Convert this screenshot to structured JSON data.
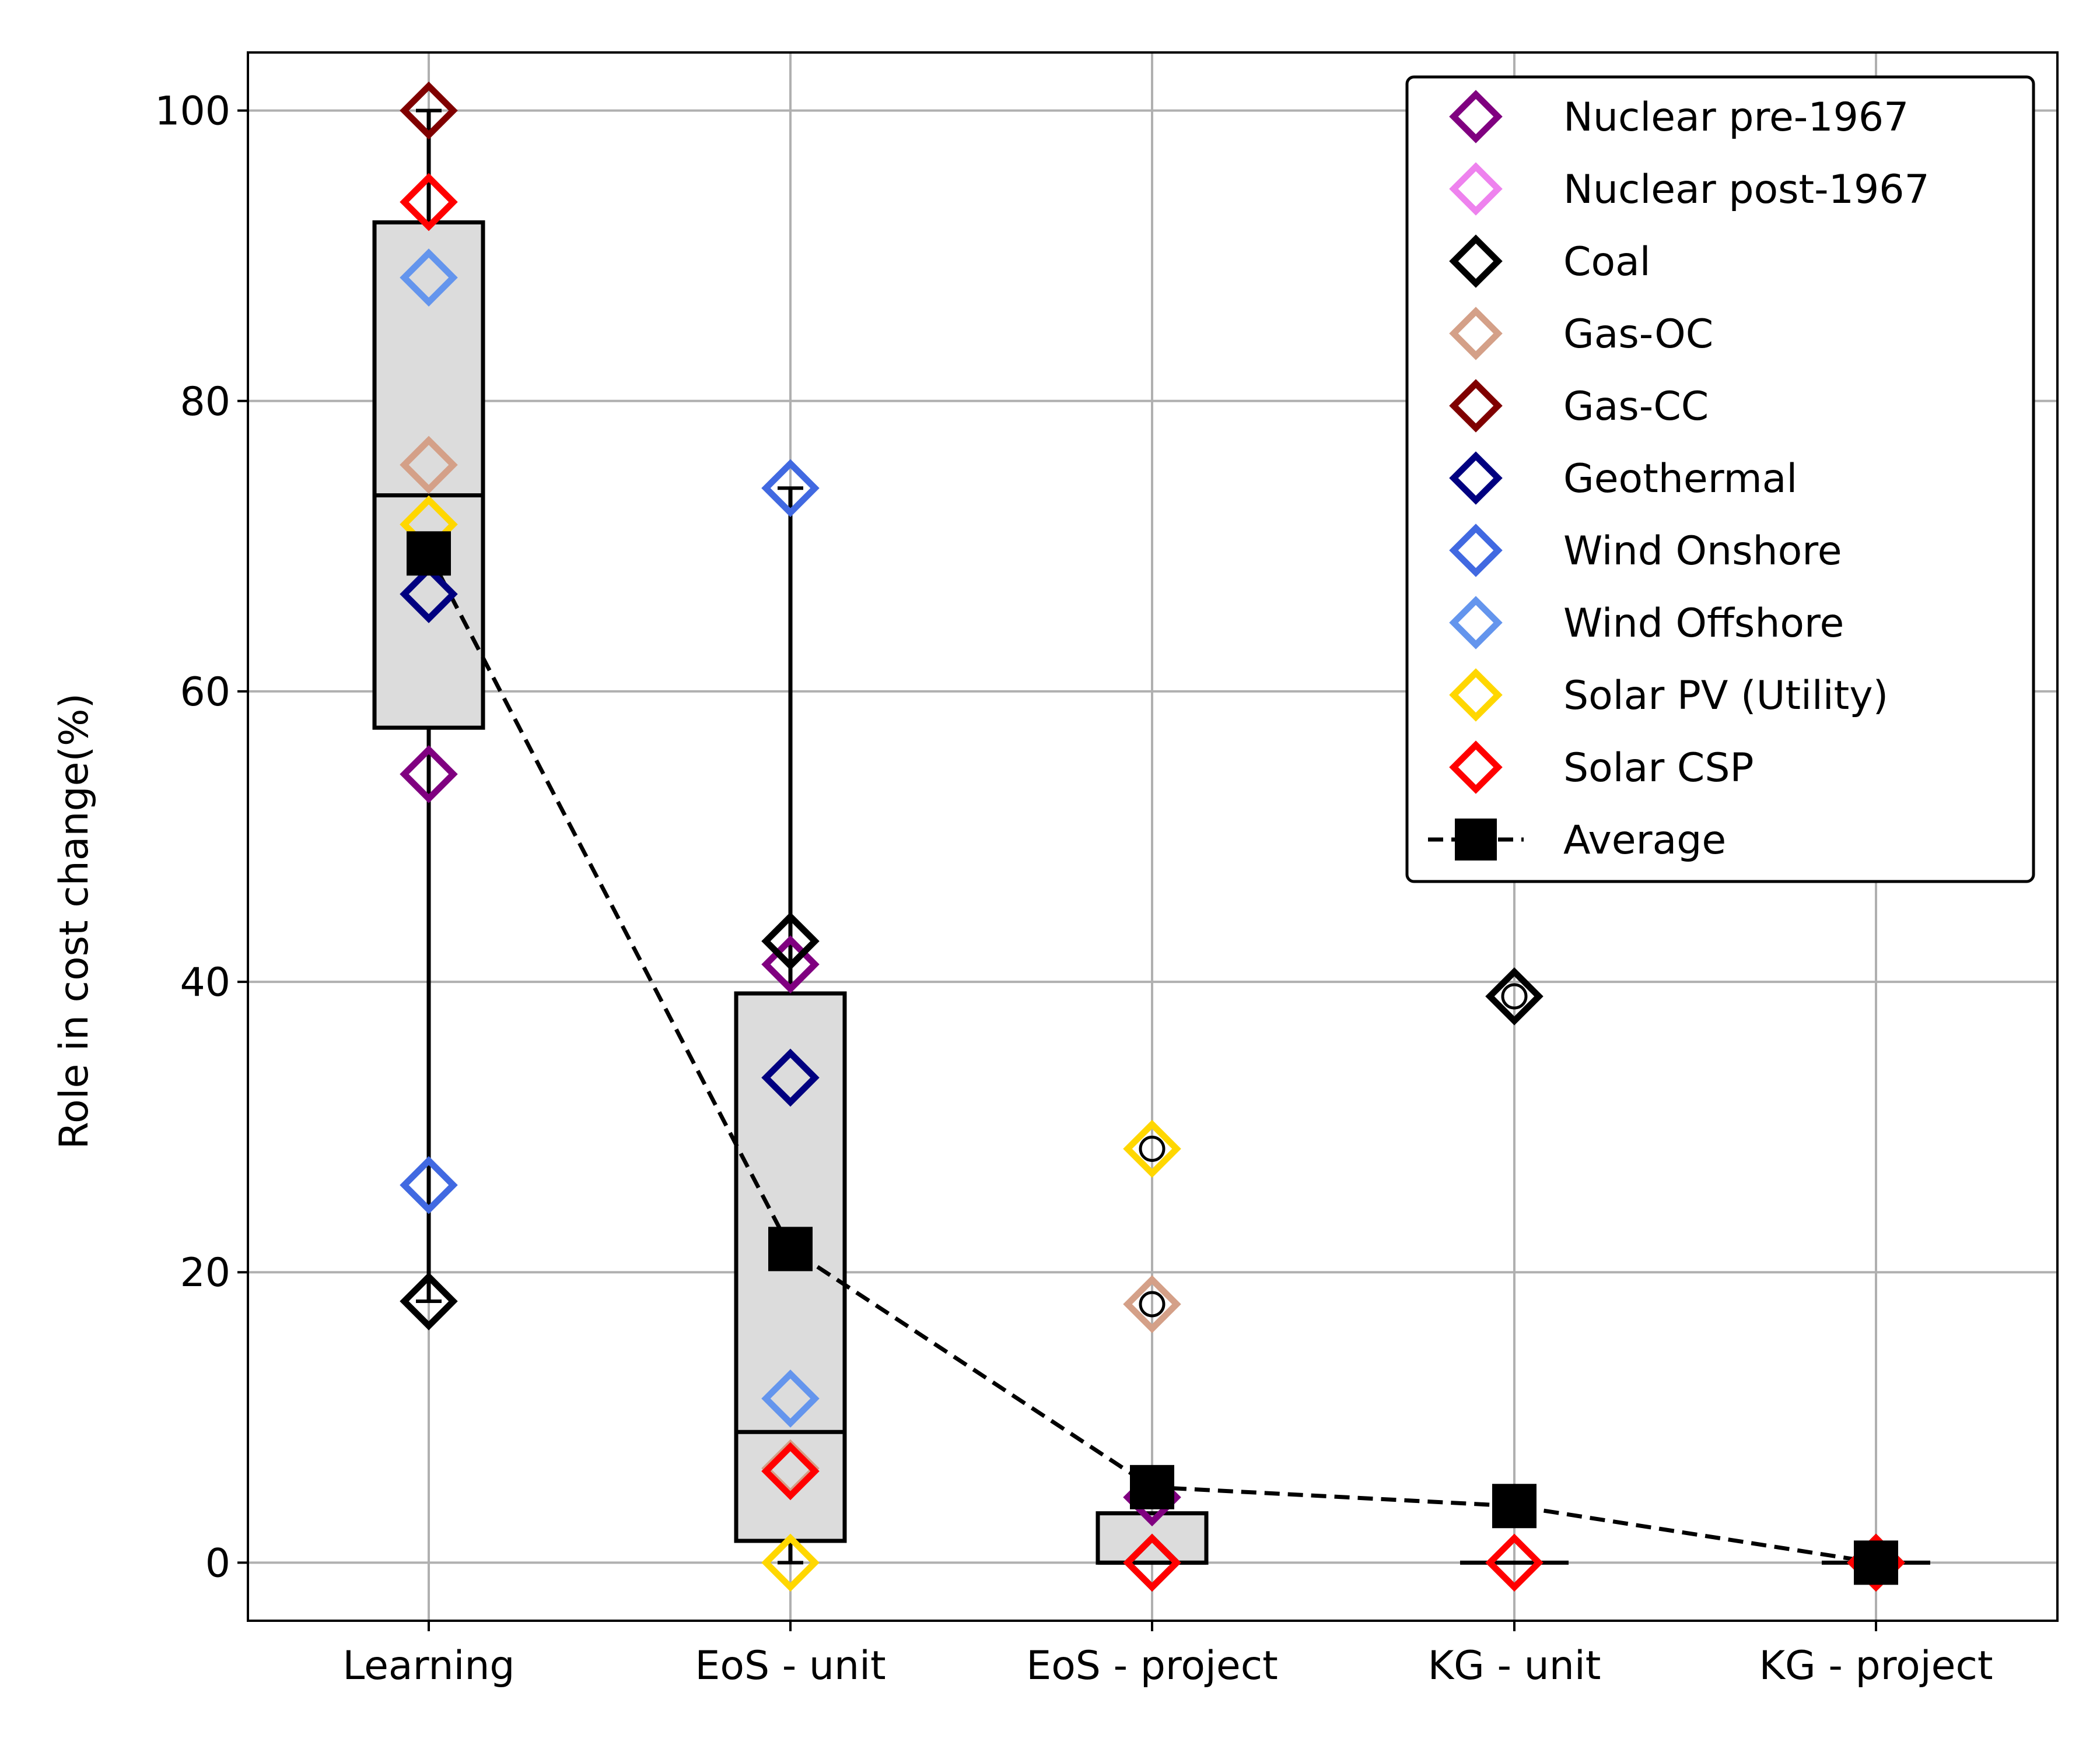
{
  "chart_data": {
    "type": "box",
    "ylabel": "Role in cost change(%)",
    "xlabel": "",
    "title": "",
    "categories": [
      "Learning",
      "EoS - unit",
      "EoS - project",
      "KG - unit",
      "KG - project"
    ],
    "y_ticks": [
      0,
      20,
      40,
      60,
      80,
      100
    ],
    "ylim": [
      -4,
      104
    ],
    "grid": true,
    "legend_placement": "top-right",
    "boxes": [
      {
        "category": "Learning",
        "whisker_low": 18,
        "q1": 57.5,
        "median": 73.5,
        "q3": 92.3,
        "whisker_high": 100
      },
      {
        "category": "EoS - unit",
        "whisker_low": 0,
        "q1": 1.5,
        "median": 9.0,
        "q3": 39.2,
        "whisker_high": 74
      },
      {
        "category": "EoS - project",
        "whisker_low": 0,
        "q1": 0,
        "median": 0,
        "q3": 3.4,
        "whisker_high": 3.4
      },
      {
        "category": "KG - unit",
        "whisker_low": 0,
        "q1": 0,
        "median": 0,
        "q3": 0,
        "whisker_high": 0
      },
      {
        "category": "KG - project",
        "whisker_low": 0,
        "q1": 0,
        "median": 0,
        "q3": 0,
        "whisker_high": 0
      }
    ],
    "outliers": [
      {
        "category": "EoS - project",
        "value": 28.5
      },
      {
        "category": "EoS - project",
        "value": 17.8
      },
      {
        "category": "KG - unit",
        "value": 39
      }
    ],
    "series": [
      {
        "name": "Nuclear pre-1967",
        "color": "#800080",
        "values": [
          54.3,
          41.2,
          4.5,
          null,
          0
        ]
      },
      {
        "name": "Nuclear post-1967",
        "color": "#ee82ee",
        "values": [
          null,
          null,
          null,
          null,
          null
        ]
      },
      {
        "name": "Coal",
        "color": "#000000",
        "values": [
          18,
          42.8,
          0,
          39,
          0
        ]
      },
      {
        "name": "Gas-OC",
        "color": "#d4a088",
        "values": [
          75.6,
          6.5,
          17.8,
          null,
          0
        ]
      },
      {
        "name": "Gas-CC",
        "color": "#800000",
        "values": [
          100,
          null,
          null,
          null,
          0
        ]
      },
      {
        "name": "Geothermal",
        "color": "#000080",
        "values": [
          66.7,
          33.4,
          null,
          null,
          0
        ]
      },
      {
        "name": "Wind Onshore",
        "color": "#4169e1",
        "values": [
          26,
          74,
          null,
          null,
          0
        ]
      },
      {
        "name": "Wind Offshore",
        "color": "#6495ed",
        "values": [
          88.5,
          11.3,
          null,
          null,
          0
        ]
      },
      {
        "name": "Solar PV (Utility)",
        "color": "#ffd700",
        "values": [
          71.5,
          0,
          28.5,
          null,
          0
        ]
      },
      {
        "name": "Solar CSP",
        "color": "#ff0000",
        "values": [
          93.7,
          6.3,
          0,
          0,
          0
        ]
      }
    ],
    "average": {
      "name": "Average",
      "values": [
        69.5,
        21.6,
        5.2,
        3.9,
        0
      ]
    }
  }
}
